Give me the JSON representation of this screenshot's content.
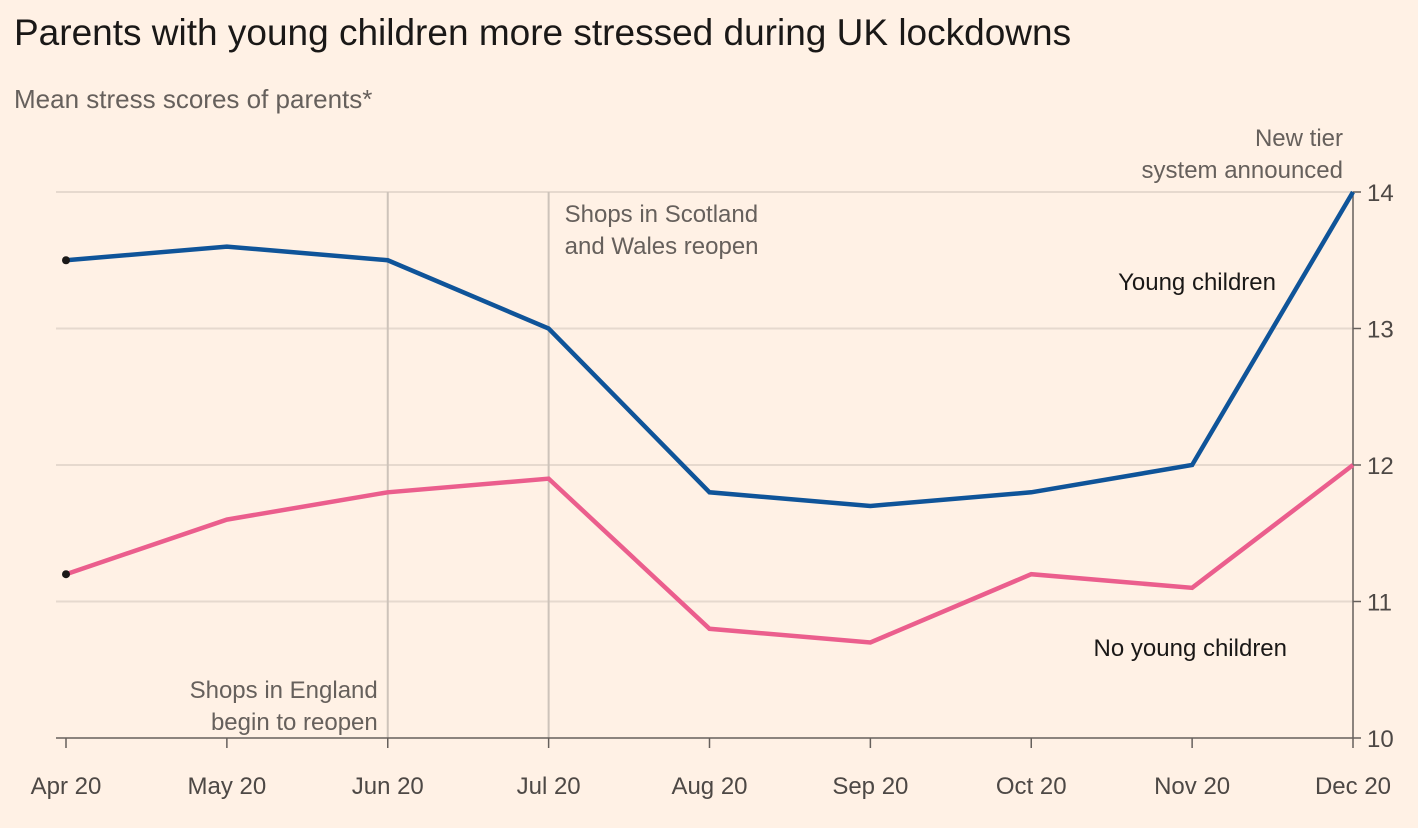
{
  "title": "Parents with young children more stressed during UK lockdowns",
  "subtitle": "Mean stress scores of parents*",
  "colors": {
    "background": "#fff1e5",
    "young_children": "#0f5499",
    "no_young_children": "#eb5e8d",
    "grid": "#e6d9ce",
    "reference_line": "#cdc3ba"
  },
  "chart_data": {
    "type": "line",
    "title": "Parents with young children more stressed during UK lockdowns",
    "subtitle": "Mean stress scores of parents*",
    "x": [
      "Apr 20",
      "May 20",
      "Jun 20",
      "Jul 20",
      "Aug 20",
      "Sep 20",
      "Oct 20",
      "Nov 20",
      "Dec 20"
    ],
    "series": [
      {
        "name": "Young children",
        "values": [
          13.5,
          13.6,
          13.5,
          13.0,
          11.8,
          11.7,
          11.8,
          12.0,
          14.0
        ]
      },
      {
        "name": "No young children",
        "values": [
          11.2,
          11.6,
          11.8,
          11.9,
          10.8,
          10.7,
          11.2,
          11.1,
          12.0
        ]
      }
    ],
    "ylim": [
      10,
      14
    ],
    "yticks": [
      "10",
      "11",
      "12",
      "13",
      "14"
    ],
    "yaxis_side": "right",
    "grid": true,
    "xlabel": "",
    "ylabel": "",
    "annotations": [
      {
        "category": "Jun 20",
        "text": [
          "Shops in England",
          "begin to reopen"
        ]
      },
      {
        "category": "Jul 20",
        "text": [
          "Shops in Scotland",
          "and Wales reopen"
        ]
      },
      {
        "category": "Dec 20",
        "text": [
          "New tier",
          "system announced"
        ]
      }
    ]
  }
}
